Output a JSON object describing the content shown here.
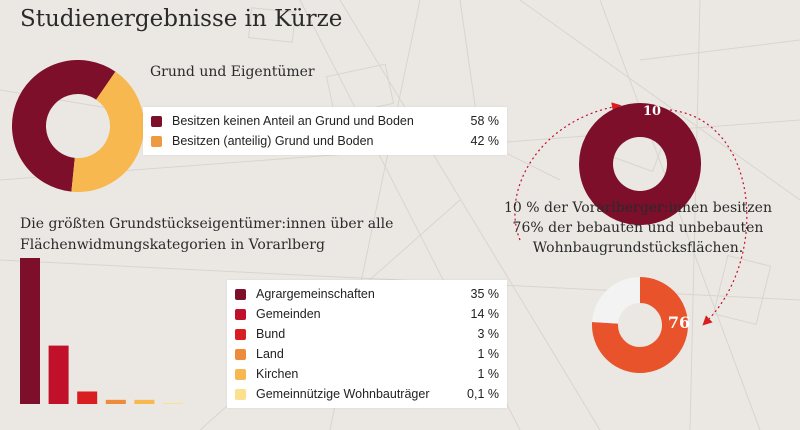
{
  "title": "Studienergebnisse in Kürze",
  "colors": {
    "background": "#ebe8e4",
    "dark_red": "#7d0f2a",
    "red": "#c0102a",
    "bright_red": "#d81e20",
    "orange": "#ee8a3c",
    "light_orange": "#f7b84f",
    "pale_yellow": "#fbe08e",
    "orange_red": "#e9532b",
    "light_gray": "#f3f3f3"
  },
  "chart_data": [
    {
      "type": "pie",
      "title": "Grund und Eigentümer",
      "slices": [
        {
          "label": "Besitzen keinen Anteil an Grund und Boden",
          "value": 58,
          "value_label": "58 %",
          "color": "#7d0f2a"
        },
        {
          "label": "Besitzen (anteilig) Grund und Boden",
          "value": 42,
          "value_label": "42 %",
          "color": "#f7b84f"
        }
      ],
      "legend": "right"
    },
    {
      "type": "bar",
      "title": "Die größten Grundstückseigentümer:innen über alle Flächenwidmungskategorien in Vorarlberg",
      "categories": [
        "Agrargemeinschaften",
        "Gemeinden",
        "Bund",
        "Land",
        "Kirchen",
        "Gemeinnützige Wohnbauträger"
      ],
      "values": [
        35,
        14,
        3,
        1,
        1,
        0.1
      ],
      "value_labels": [
        "35 %",
        "14 %",
        "3 %",
        "1 %",
        "1 %",
        "0,1 %"
      ],
      "colors": [
        "#7d0f2a",
        "#c0102a",
        "#d81e20",
        "#ee8a3c",
        "#f7b84f",
        "#fbe08e"
      ],
      "ylim": [
        0,
        35
      ],
      "legend": "right"
    },
    {
      "type": "pie",
      "slices": [
        {
          "label": "",
          "value": 10,
          "value_label": "10",
          "color": "#7d0f2a"
        },
        {
          "label": "",
          "value": 90,
          "color": "#f3f3f3"
        }
      ]
    },
    {
      "type": "pie",
      "slices": [
        {
          "label": "",
          "value": 76,
          "value_label": "76",
          "color": "#e9532b"
        },
        {
          "label": "",
          "value": 24,
          "color": "#f3f3f3"
        }
      ]
    }
  ],
  "right_text": {
    "line1": "10 % der Vorarlberger:innen besitzen",
    "line2": "76% der bebauten und unbebauten",
    "line3": "Wohnbaugrundstücksflächen."
  }
}
